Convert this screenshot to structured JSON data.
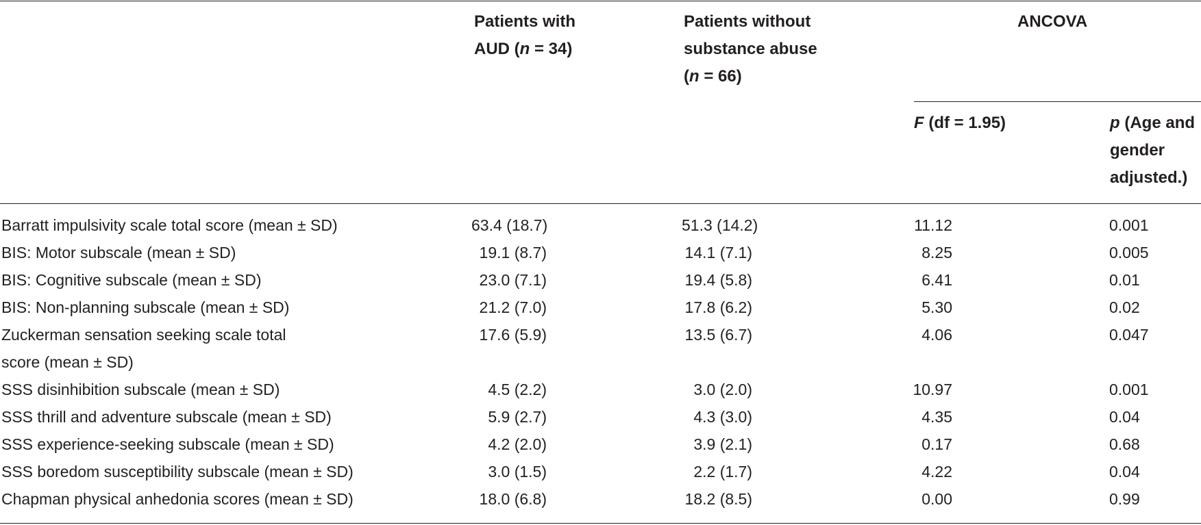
{
  "header": {
    "aud_line1": "Patients with",
    "aud_line2_pre": "AUD (",
    "aud_n_symbol": "n",
    "aud_line2_post": " = 34)",
    "nosub_line1": "Patients without",
    "nosub_line2": "substance abuse",
    "nosub_line3_pre": "(",
    "nosub_n_symbol": "n",
    "nosub_line3_post": " = 66)",
    "ancova": "ANCOVA",
    "f_symbol": "F",
    "f_rest": " (df = 1.95)",
    "p_symbol": "p",
    "p_line1_rest": " (Age and",
    "p_line2": "gender",
    "p_line3": "adjusted.)"
  },
  "rows": [
    {
      "label": [
        "Barratt impulsivity scale total score (mean ± SD)"
      ],
      "aud": "63.4 (18.7)",
      "nosub": "51.3 (14.2)",
      "f": "11.12",
      "p": "0.001"
    },
    {
      "label": [
        "BIS: Motor subscale (mean ± SD)"
      ],
      "aud": "19.1 (8.7)",
      "nosub": "14.1 (7.1)",
      "f": "8.25",
      "p": "0.005"
    },
    {
      "label": [
        "BIS: Cognitive subscale (mean ± SD)"
      ],
      "aud": "23.0 (7.1)",
      "nosub": "19.4 (5.8)",
      "f": "6.41",
      "p": "0.01"
    },
    {
      "label": [
        "BIS: Non-planning subscale (mean ± SD)"
      ],
      "aud": "21.2 (7.0)",
      "nosub": "17.8 (6.2)",
      "f": "5.30",
      "p": "0.02"
    },
    {
      "label": [
        "Zuckerman sensation seeking scale total",
        "score (mean ± SD)"
      ],
      "aud": "17.6 (5.9)",
      "nosub": "13.5 (6.7)",
      "f": "4.06",
      "p": "0.047"
    },
    {
      "label": [
        "SSS disinhibition subscale (mean ± SD)"
      ],
      "aud": "4.5 (2.2)",
      "nosub": "3.0 (2.0)",
      "f": "10.97",
      "p": "0.001"
    },
    {
      "label": [
        "SSS thrill and adventure subscale (mean ± SD)"
      ],
      "aud": "5.9 (2.7)",
      "nosub": "4.3 (3.0)",
      "f": "4.35",
      "p": "0.04"
    },
    {
      "label": [
        "SSS experience-seeking subscale (mean ± SD)"
      ],
      "aud": "4.2 (2.0)",
      "nosub": "3.9 (2.1)",
      "f": "0.17",
      "p": "0.68"
    },
    {
      "label": [
        "SSS boredom susceptibility subscale (mean ± SD)"
      ],
      "aud": "3.0 (1.5)",
      "nosub": "2.2 (1.7)",
      "f": "4.22",
      "p": "0.04"
    },
    {
      "label": [
        "Chapman physical anhedonia scores (mean ± SD)"
      ],
      "aud": "18.0 (6.8)",
      "nosub": "18.2 (8.5)",
      "f": "0.00",
      "p": "0.99"
    }
  ]
}
